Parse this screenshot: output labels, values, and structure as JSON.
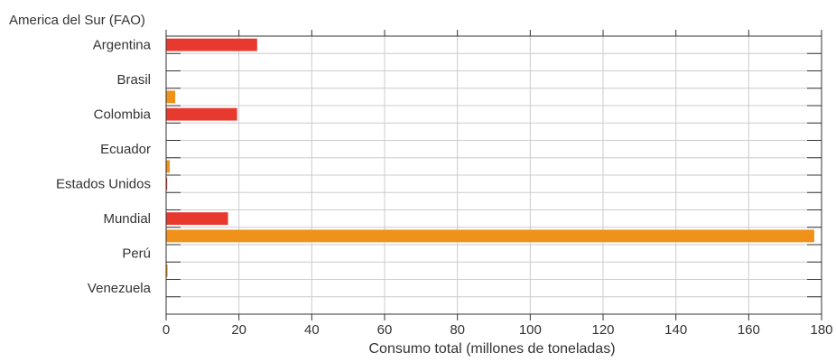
{
  "chart_data": {
    "type": "bar",
    "orientation": "horizontal",
    "header_label": "America del Sur (FAO)",
    "xlabel": "Consumo total (millones de toneladas)",
    "ylabel": "",
    "xlim": [
      0,
      180
    ],
    "x_ticks": [
      "0",
      "20",
      "40",
      "60",
      "80",
      "100",
      "120",
      "140",
      "160",
      "180"
    ],
    "grid": true,
    "categories": [
      "Argentina",
      "Brasil",
      "Colombia",
      "Ecuador",
      "Estados Unidos",
      "Mundial",
      "Perú",
      "Venezuela"
    ],
    "series": [
      {
        "color": "#e8392f",
        "values": [
          25,
          0,
          19.5,
          0,
          0.3,
          17,
          0,
          0
        ]
      },
      {
        "color": "#f0921a",
        "values": [
          0,
          2.5,
          0,
          1,
          0,
          178,
          0.4,
          0
        ]
      }
    ]
  }
}
